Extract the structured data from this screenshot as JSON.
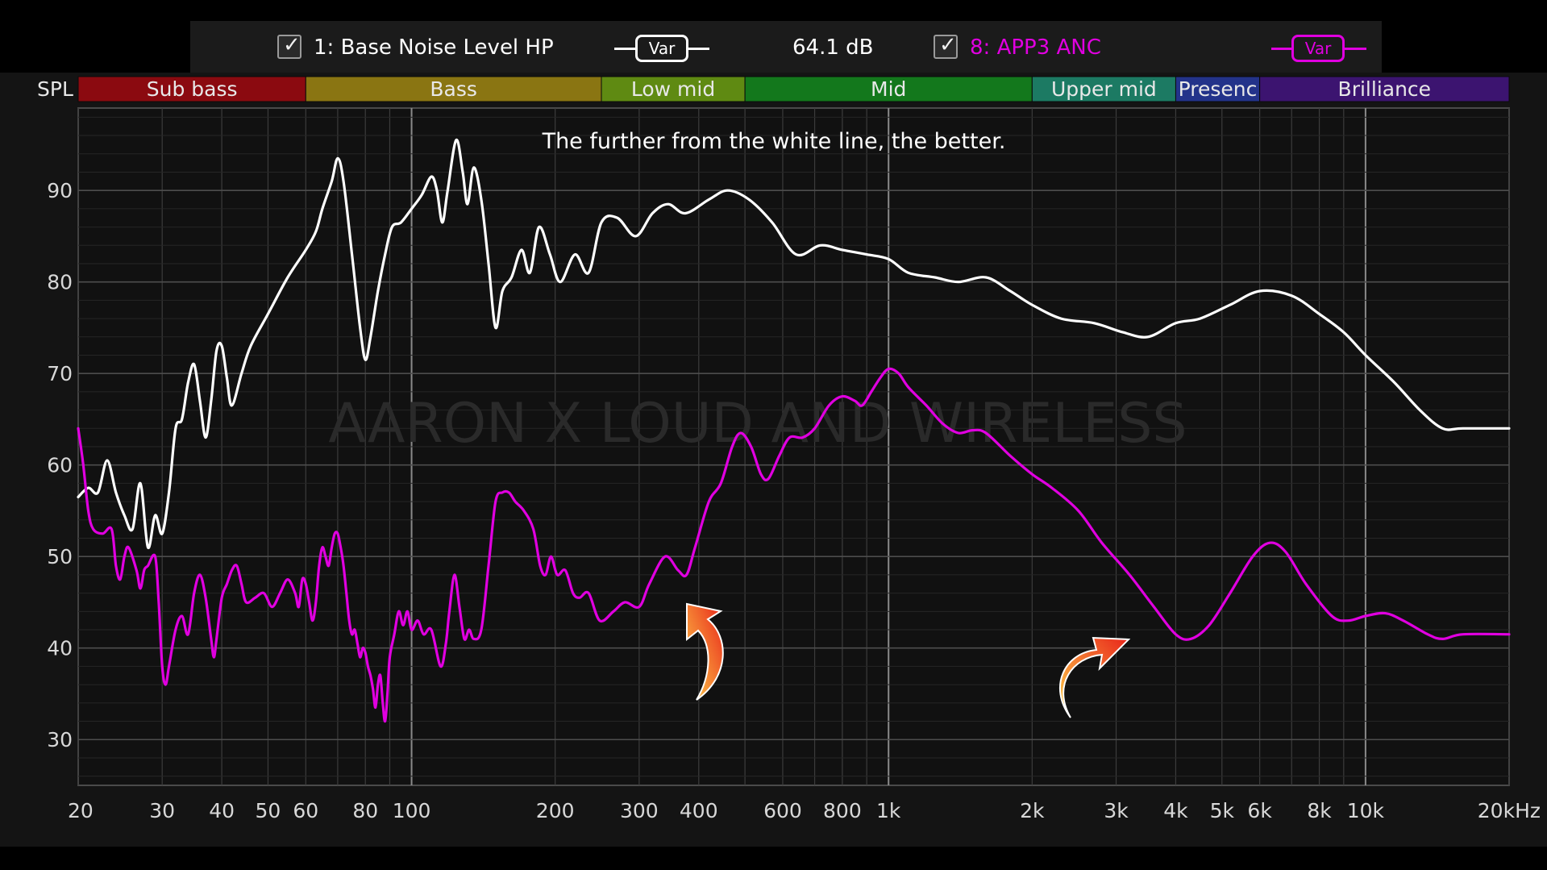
{
  "legend": {
    "entry1": {
      "checked": true,
      "label": "1: Base Noise Level HP",
      "button": "Var",
      "color": "#ffffff"
    },
    "level": "64.1 dB",
    "entry2": {
      "checked": true,
      "label": "8: APP3 ANC",
      "button": "Var",
      "color": "#e000e0"
    }
  },
  "annotation": "The further from the white line, the better.",
  "watermark": "AARON X LOUD AND WIRELESS",
  "colors": {
    "background": "#000000",
    "plot_bg": "#111111",
    "grid": "#3a3a3a",
    "series1": "#ffffff",
    "series2": "#e000e0",
    "arrow_start": "#ffd24a",
    "arrow_end": "#e8241a"
  },
  "bands": [
    {
      "label": "Sub bass",
      "from": 20,
      "to": 60,
      "color": "#8b0a10"
    },
    {
      "label": "Bass",
      "from": 60,
      "to": 250,
      "color": "#8a7512"
    },
    {
      "label": "Low mid",
      "from": 250,
      "to": 500,
      "color": "#5f8a12"
    },
    {
      "label": "Mid",
      "from": 500,
      "to": 2000,
      "color": "#13781c"
    },
    {
      "label": "Upper mid",
      "from": 2000,
      "to": 4000,
      "color": "#1c7a63"
    },
    {
      "label": "Presenc",
      "from": 4000,
      "to": 6000,
      "color": "#23338a"
    },
    {
      "label": "Brilliance",
      "from": 6000,
      "to": 20000,
      "color": "#3c1470"
    }
  ],
  "chart_data": {
    "type": "line",
    "xscale": "log",
    "xlim": [
      20,
      20000
    ],
    "ylim": [
      25,
      99
    ],
    "ylabel": "SPL",
    "grid": true,
    "yticks": [
      30,
      40,
      50,
      60,
      70,
      80,
      90
    ],
    "xticks": [
      {
        "value": 20,
        "label": "20"
      },
      {
        "value": 30,
        "label": "30"
      },
      {
        "value": 40,
        "label": "40"
      },
      {
        "value": 50,
        "label": "50"
      },
      {
        "value": 60,
        "label": "60"
      },
      {
        "value": 80,
        "label": "80"
      },
      {
        "value": 100,
        "label": "100"
      },
      {
        "value": 200,
        "label": "200"
      },
      {
        "value": 300,
        "label": "300"
      },
      {
        "value": 400,
        "label": "400"
      },
      {
        "value": 600,
        "label": "600"
      },
      {
        "value": 800,
        "label": "800"
      },
      {
        "value": 1000,
        "label": "1k"
      },
      {
        "value": 2000,
        "label": "2k"
      },
      {
        "value": 3000,
        "label": "3k"
      },
      {
        "value": 4000,
        "label": "4k"
      },
      {
        "value": 5000,
        "label": "5k"
      },
      {
        "value": 6000,
        "label": "6k"
      },
      {
        "value": 8000,
        "label": "8k"
      },
      {
        "value": 10000,
        "label": "10k"
      },
      {
        "value": 20000,
        "label": "20kHz"
      }
    ],
    "series": [
      {
        "name": "1: Base Noise Level HP",
        "color": "#ffffff",
        "points": [
          [
            20,
            56.5
          ],
          [
            21,
            57.5
          ],
          [
            22,
            57
          ],
          [
            23,
            60.5
          ],
          [
            24,
            57
          ],
          [
            25,
            54.5
          ],
          [
            26,
            53
          ],
          [
            27,
            58
          ],
          [
            28,
            51
          ],
          [
            29,
            54.5
          ],
          [
            30,
            52.5
          ],
          [
            31,
            57
          ],
          [
            32,
            64
          ],
          [
            33,
            65
          ],
          [
            34,
            69
          ],
          [
            35,
            71
          ],
          [
            36,
            67
          ],
          [
            37,
            63
          ],
          [
            38,
            67
          ],
          [
            39,
            72.5
          ],
          [
            40,
            73
          ],
          [
            41,
            69.5
          ],
          [
            42,
            66.5
          ],
          [
            44,
            70
          ],
          [
            46,
            73
          ],
          [
            50,
            76.5
          ],
          [
            55,
            80.5
          ],
          [
            60,
            83.5
          ],
          [
            63,
            85.5
          ],
          [
            65,
            88
          ],
          [
            68,
            91
          ],
          [
            70,
            93.5
          ],
          [
            72,
            91
          ],
          [
            75,
            83
          ],
          [
            78,
            75
          ],
          [
            80,
            71.5
          ],
          [
            82,
            74
          ],
          [
            85,
            79
          ],
          [
            88,
            83
          ],
          [
            91,
            86
          ],
          [
            95,
            86.5
          ],
          [
            100,
            88
          ],
          [
            105,
            89.5
          ],
          [
            110,
            91.5
          ],
          [
            113,
            90
          ],
          [
            116,
            86.5
          ],
          [
            119,
            90
          ],
          [
            124,
            95.5
          ],
          [
            128,
            92
          ],
          [
            131,
            88.5
          ],
          [
            135,
            92.5
          ],
          [
            140,
            89
          ],
          [
            145,
            82
          ],
          [
            150,
            75
          ],
          [
            155,
            79
          ],
          [
            162,
            80.5
          ],
          [
            170,
            83.5
          ],
          [
            177,
            81
          ],
          [
            185,
            86
          ],
          [
            195,
            83
          ],
          [
            205,
            80
          ],
          [
            220,
            83
          ],
          [
            235,
            81
          ],
          [
            250,
            86.5
          ],
          [
            270,
            87
          ],
          [
            295,
            85
          ],
          [
            320,
            87.5
          ],
          [
            345,
            88.5
          ],
          [
            375,
            87.5
          ],
          [
            420,
            89
          ],
          [
            460,
            90
          ],
          [
            510,
            89
          ],
          [
            570,
            86.5
          ],
          [
            640,
            83
          ],
          [
            720,
            84
          ],
          [
            800,
            83.5
          ],
          [
            900,
            83
          ],
          [
            1000,
            82.5
          ],
          [
            1100,
            81
          ],
          [
            1250,
            80.5
          ],
          [
            1400,
            80
          ],
          [
            1600,
            80.5
          ],
          [
            1800,
            79
          ],
          [
            2000,
            77.5
          ],
          [
            2300,
            76
          ],
          [
            2700,
            75.5
          ],
          [
            3100,
            74.5
          ],
          [
            3500,
            74
          ],
          [
            4000,
            75.5
          ],
          [
            4500,
            76
          ],
          [
            5200,
            77.5
          ],
          [
            6000,
            79
          ],
          [
            7000,
            78.5
          ],
          [
            8000,
            76.5
          ],
          [
            9000,
            74.5
          ],
          [
            10000,
            72
          ],
          [
            11500,
            69
          ],
          [
            13000,
            66
          ],
          [
            14500,
            64
          ],
          [
            16000,
            64
          ],
          [
            20000,
            64
          ]
        ]
      },
      {
        "name": "8: APP3 ANC",
        "color": "#e000e0",
        "points": [
          [
            20,
            64
          ],
          [
            20.5,
            60
          ],
          [
            21,
            55
          ],
          [
            21.5,
            53
          ],
          [
            22.5,
            52.5
          ],
          [
            23.5,
            53
          ],
          [
            24,
            49
          ],
          [
            24.5,
            47.5
          ],
          [
            25,
            50
          ],
          [
            25.5,
            51
          ],
          [
            26.5,
            48.5
          ],
          [
            27,
            46.5
          ],
          [
            27.5,
            48.5
          ],
          [
            28,
            49
          ],
          [
            29,
            50
          ],
          [
            29.5,
            45
          ],
          [
            30,
            38
          ],
          [
            30.5,
            36
          ],
          [
            31,
            38
          ],
          [
            32,
            42
          ],
          [
            33,
            43.5
          ],
          [
            34,
            41.5
          ],
          [
            35,
            46
          ],
          [
            36,
            48
          ],
          [
            37,
            45.5
          ],
          [
            38,
            41
          ],
          [
            38.5,
            39
          ],
          [
            39,
            41
          ],
          [
            40,
            45.5
          ],
          [
            41,
            47
          ],
          [
            42,
            48.5
          ],
          [
            43,
            49
          ],
          [
            44,
            47
          ],
          [
            45,
            45
          ],
          [
            47,
            45.5
          ],
          [
            49,
            46
          ],
          [
            51,
            44.5
          ],
          [
            53,
            46
          ],
          [
            55,
            47.5
          ],
          [
            57,
            46
          ],
          [
            58,
            44.5
          ],
          [
            59,
            47.5
          ],
          [
            60,
            47
          ],
          [
            61,
            45
          ],
          [
            62,
            43
          ],
          [
            63,
            45
          ],
          [
            64,
            49
          ],
          [
            65,
            51
          ],
          [
            66,
            50
          ],
          [
            67,
            49
          ],
          [
            68,
            51
          ],
          [
            69,
            52.5
          ],
          [
            70,
            52.5
          ],
          [
            71,
            51
          ],
          [
            72,
            49
          ],
          [
            73,
            46
          ],
          [
            74,
            43
          ],
          [
            75,
            41.5
          ],
          [
            76,
            42
          ],
          [
            77,
            40.5
          ],
          [
            78,
            39
          ],
          [
            79,
            40
          ],
          [
            80,
            39.5
          ],
          [
            81,
            38
          ],
          [
            82,
            37
          ],
          [
            83,
            35.5
          ],
          [
            84,
            33.5
          ],
          [
            85,
            36
          ],
          [
            86,
            37
          ],
          [
            87,
            34
          ],
          [
            88,
            32
          ],
          [
            89,
            35
          ],
          [
            90,
            39
          ],
          [
            92,
            41.5
          ],
          [
            94,
            44
          ],
          [
            96,
            42.5
          ],
          [
            98,
            44
          ],
          [
            100,
            42
          ],
          [
            103,
            43
          ],
          [
            106,
            41.5
          ],
          [
            110,
            42
          ],
          [
            115,
            38
          ],
          [
            118,
            40.5
          ],
          [
            120,
            44
          ],
          [
            123,
            48
          ],
          [
            126,
            44.5
          ],
          [
            129,
            41
          ],
          [
            132,
            42
          ],
          [
            135,
            41
          ],
          [
            140,
            42
          ],
          [
            145,
            49
          ],
          [
            150,
            56
          ],
          [
            155,
            57
          ],
          [
            160,
            57
          ],
          [
            165,
            56
          ],
          [
            172,
            55
          ],
          [
            180,
            53
          ],
          [
            186,
            49
          ],
          [
            191,
            48
          ],
          [
            196,
            50
          ],
          [
            202,
            48
          ],
          [
            210,
            48.5
          ],
          [
            218,
            46
          ],
          [
            225,
            45.5
          ],
          [
            235,
            46
          ],
          [
            248,
            43
          ],
          [
            265,
            44
          ],
          [
            280,
            45
          ],
          [
            300,
            44.5
          ],
          [
            315,
            47
          ],
          [
            340,
            50
          ],
          [
            362,
            48.5
          ],
          [
            377,
            48
          ],
          [
            393,
            51
          ],
          [
            420,
            56
          ],
          [
            445,
            58
          ],
          [
            470,
            62
          ],
          [
            490,
            63.5
          ],
          [
            515,
            62
          ],
          [
            540,
            59
          ],
          [
            560,
            58.5
          ],
          [
            590,
            61
          ],
          [
            620,
            63
          ],
          [
            660,
            63
          ],
          [
            700,
            64
          ],
          [
            750,
            66.5
          ],
          [
            800,
            67.5
          ],
          [
            850,
            67
          ],
          [
            880,
            66.5
          ],
          [
            920,
            68
          ],
          [
            960,
            69.5
          ],
          [
            1000,
            70.5
          ],
          [
            1050,
            70
          ],
          [
            1100,
            68.5
          ],
          [
            1200,
            66.5
          ],
          [
            1300,
            64.5
          ],
          [
            1400,
            63.5
          ],
          [
            1500,
            63.8
          ],
          [
            1600,
            63.5
          ],
          [
            1800,
            61
          ],
          [
            2000,
            59
          ],
          [
            2200,
            57.5
          ],
          [
            2500,
            55
          ],
          [
            2800,
            51.5
          ],
          [
            3200,
            48
          ],
          [
            3600,
            44.5
          ],
          [
            4000,
            41.5
          ],
          [
            4300,
            41
          ],
          [
            4700,
            42.5
          ],
          [
            5200,
            46
          ],
          [
            5800,
            50
          ],
          [
            6300,
            51.5
          ],
          [
            6800,
            50.5
          ],
          [
            7500,
            47
          ],
          [
            8500,
            43.5
          ],
          [
            9200,
            43
          ],
          [
            10000,
            43.5
          ],
          [
            11000,
            43.8
          ],
          [
            12000,
            43
          ],
          [
            13500,
            41.5
          ],
          [
            14500,
            41
          ],
          [
            16000,
            41.5
          ],
          [
            20000,
            41.5
          ]
        ]
      }
    ]
  }
}
